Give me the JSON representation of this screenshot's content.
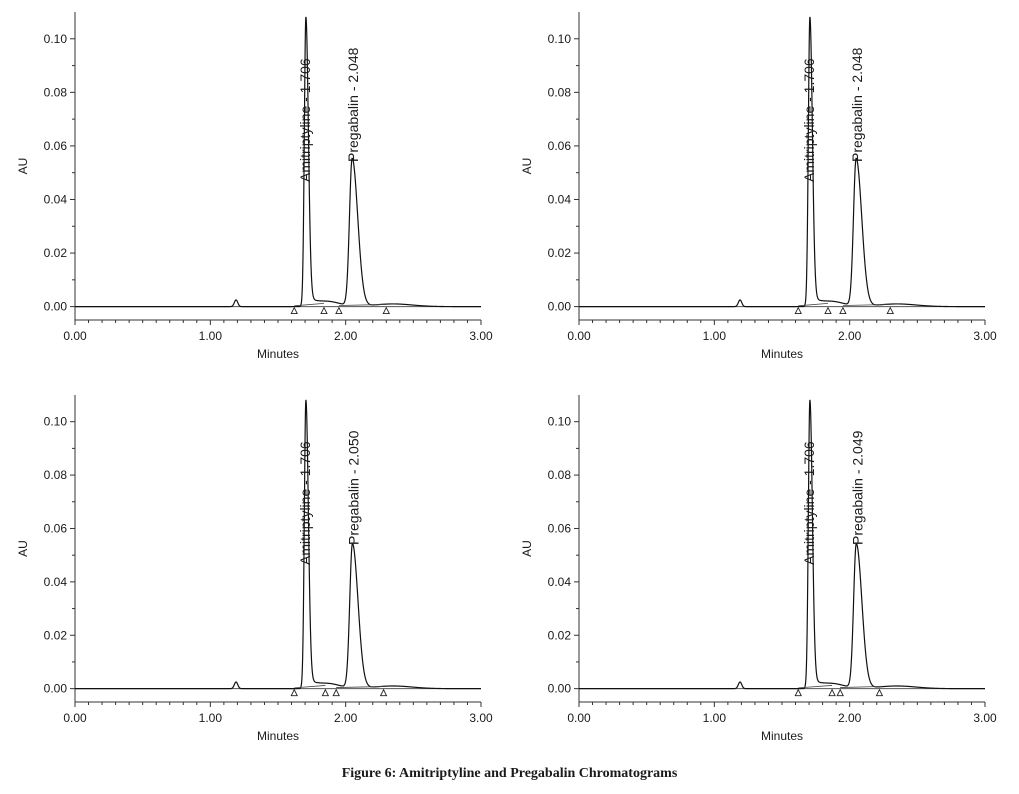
{
  "caption": "Figure 6: Amitriptyline and Pregabalin Chromatograms",
  "chart_data": [
    {
      "type": "line",
      "xlabel": "Minutes",
      "ylabel": "AU",
      "xlim": [
        0,
        3.0
      ],
      "ylim": [
        -0.005,
        0.11
      ],
      "xticks": [
        "0.00",
        "1.00",
        "2.00",
        "3.00"
      ],
      "yticks": [
        "0.00",
        "0.02",
        "0.04",
        "0.06",
        "0.08",
        "0.10"
      ],
      "peaks": [
        {
          "name": "Amitriptyline",
          "label": "Amitriptyline - 1.706",
          "rt": 1.706,
          "height": 0.108
        },
        {
          "name": "Pregabalin",
          "label": "Pregabalin - 2.048",
          "rt": 2.048,
          "height": 0.055
        }
      ],
      "markers": [
        1.62,
        1.84,
        1.95,
        2.3
      ]
    },
    {
      "type": "line",
      "xlabel": "Minutes",
      "ylabel": "AU",
      "xlim": [
        0,
        3.0
      ],
      "ylim": [
        -0.005,
        0.11
      ],
      "xticks": [
        "0.00",
        "1.00",
        "2.00",
        "3.00"
      ],
      "yticks": [
        "0.00",
        "0.02",
        "0.04",
        "0.06",
        "0.08",
        "0.10"
      ],
      "peaks": [
        {
          "name": "Amitriptyline",
          "label": "Amitriptyline - 1.706",
          "rt": 1.706,
          "height": 0.108
        },
        {
          "name": "Pregabalin",
          "label": "Pregabalin - 2.048",
          "rt": 2.048,
          "height": 0.055
        }
      ],
      "markers": [
        1.62,
        1.84,
        1.95,
        2.3
      ]
    },
    {
      "type": "line",
      "xlabel": "Minutes",
      "ylabel": "AU",
      "xlim": [
        0,
        3.0
      ],
      "ylim": [
        -0.005,
        0.11
      ],
      "xticks": [
        "0.00",
        "1.00",
        "2.00",
        "3.00"
      ],
      "yticks": [
        "0.00",
        "0.02",
        "0.04",
        "0.06",
        "0.08",
        "0.10"
      ],
      "peaks": [
        {
          "name": "Amitriptyline",
          "label": "Amitriptyline - 1.706",
          "rt": 1.706,
          "height": 0.108
        },
        {
          "name": "Pregabalin",
          "label": "Pregabalin - 2.050",
          "rt": 2.05,
          "height": 0.054
        }
      ],
      "markers": [
        1.62,
        1.85,
        1.93,
        2.28
      ]
    },
    {
      "type": "line",
      "xlabel": "Minutes",
      "ylabel": "AU",
      "xlim": [
        0,
        3.0
      ],
      "ylim": [
        -0.005,
        0.11
      ],
      "xticks": [
        "0.00",
        "1.00",
        "2.00",
        "3.00"
      ],
      "yticks": [
        "0.00",
        "0.02",
        "0.04",
        "0.06",
        "0.08",
        "0.10"
      ],
      "peaks": [
        {
          "name": "Amitriptyline",
          "label": "Amitriptyline - 1.706",
          "rt": 1.706,
          "height": 0.108
        },
        {
          "name": "Pregabalin",
          "label": "Pregabalin - 2.049",
          "rt": 2.049,
          "height": 0.054
        }
      ],
      "markers": [
        1.62,
        1.87,
        1.93,
        2.22
      ]
    }
  ]
}
